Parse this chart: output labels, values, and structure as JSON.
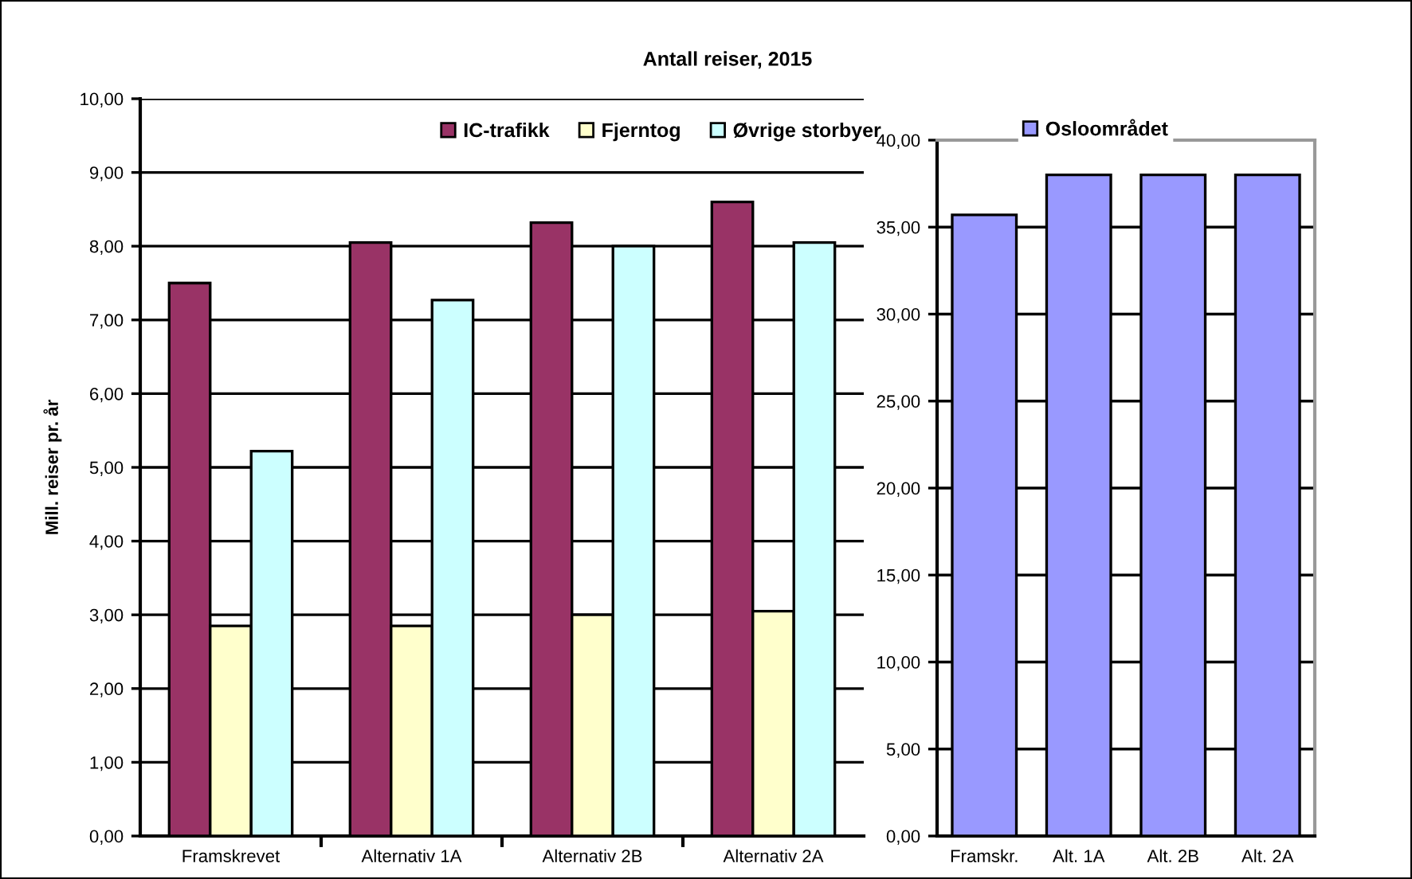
{
  "chart_data": [
    {
      "type": "bar",
      "title": "Antall reiser, 2015",
      "ylabel": "Mill. reiser pr. år",
      "categories": [
        "Framskrevet",
        "Alternativ 1A",
        "Alternativ 2B",
        "Alternativ 2A"
      ],
      "series": [
        {
          "name": "IC-trafikk",
          "color": "#993366",
          "values": [
            7.5,
            8.05,
            8.32,
            8.6
          ]
        },
        {
          "name": "Fjerntog",
          "color": "#ffffcc",
          "values": [
            2.85,
            2.85,
            3.0,
            3.05
          ]
        },
        {
          "name": "Øvrige storbyer",
          "color": "#ccffff",
          "values": [
            5.22,
            7.27,
            8.0,
            8.05
          ]
        }
      ],
      "ylim": [
        0,
        10
      ],
      "yticks": [
        {
          "value": 0,
          "label": "0,00"
        },
        {
          "value": 1,
          "label": "1,00"
        },
        {
          "value": 2,
          "label": "2,00"
        },
        {
          "value": 3,
          "label": "3,00"
        },
        {
          "value": 4,
          "label": "4,00"
        },
        {
          "value": 5,
          "label": "5,00"
        },
        {
          "value": 6,
          "label": "6,00"
        },
        {
          "value": 7,
          "label": "7,00"
        },
        {
          "value": 8,
          "label": "8,00"
        },
        {
          "value": 9,
          "label": "9,00"
        },
        {
          "value": 10,
          "label": "10,00"
        }
      ],
      "grid": "y",
      "legend": "top"
    },
    {
      "type": "bar",
      "categories": [
        "Framskr.",
        "Alt. 1A",
        "Alt. 2B",
        "Alt. 2A"
      ],
      "series": [
        {
          "name": "Osloområdet",
          "color": "#9999ff",
          "values": [
            35.7,
            38.0,
            38.0,
            38.0
          ]
        }
      ],
      "ylim": [
        0,
        40
      ],
      "yticks": [
        {
          "value": 0,
          "label": "0,00"
        },
        {
          "value": 5,
          "label": "5,00"
        },
        {
          "value": 10,
          "label": "10,00"
        },
        {
          "value": 15,
          "label": "15,00"
        },
        {
          "value": 20,
          "label": "20,00"
        },
        {
          "value": 25,
          "label": "25,00"
        },
        {
          "value": 30,
          "label": "30,00"
        },
        {
          "value": 35,
          "label": "35,00"
        },
        {
          "value": 40,
          "label": "40,00"
        }
      ],
      "grid": "y",
      "legend": "top"
    }
  ]
}
